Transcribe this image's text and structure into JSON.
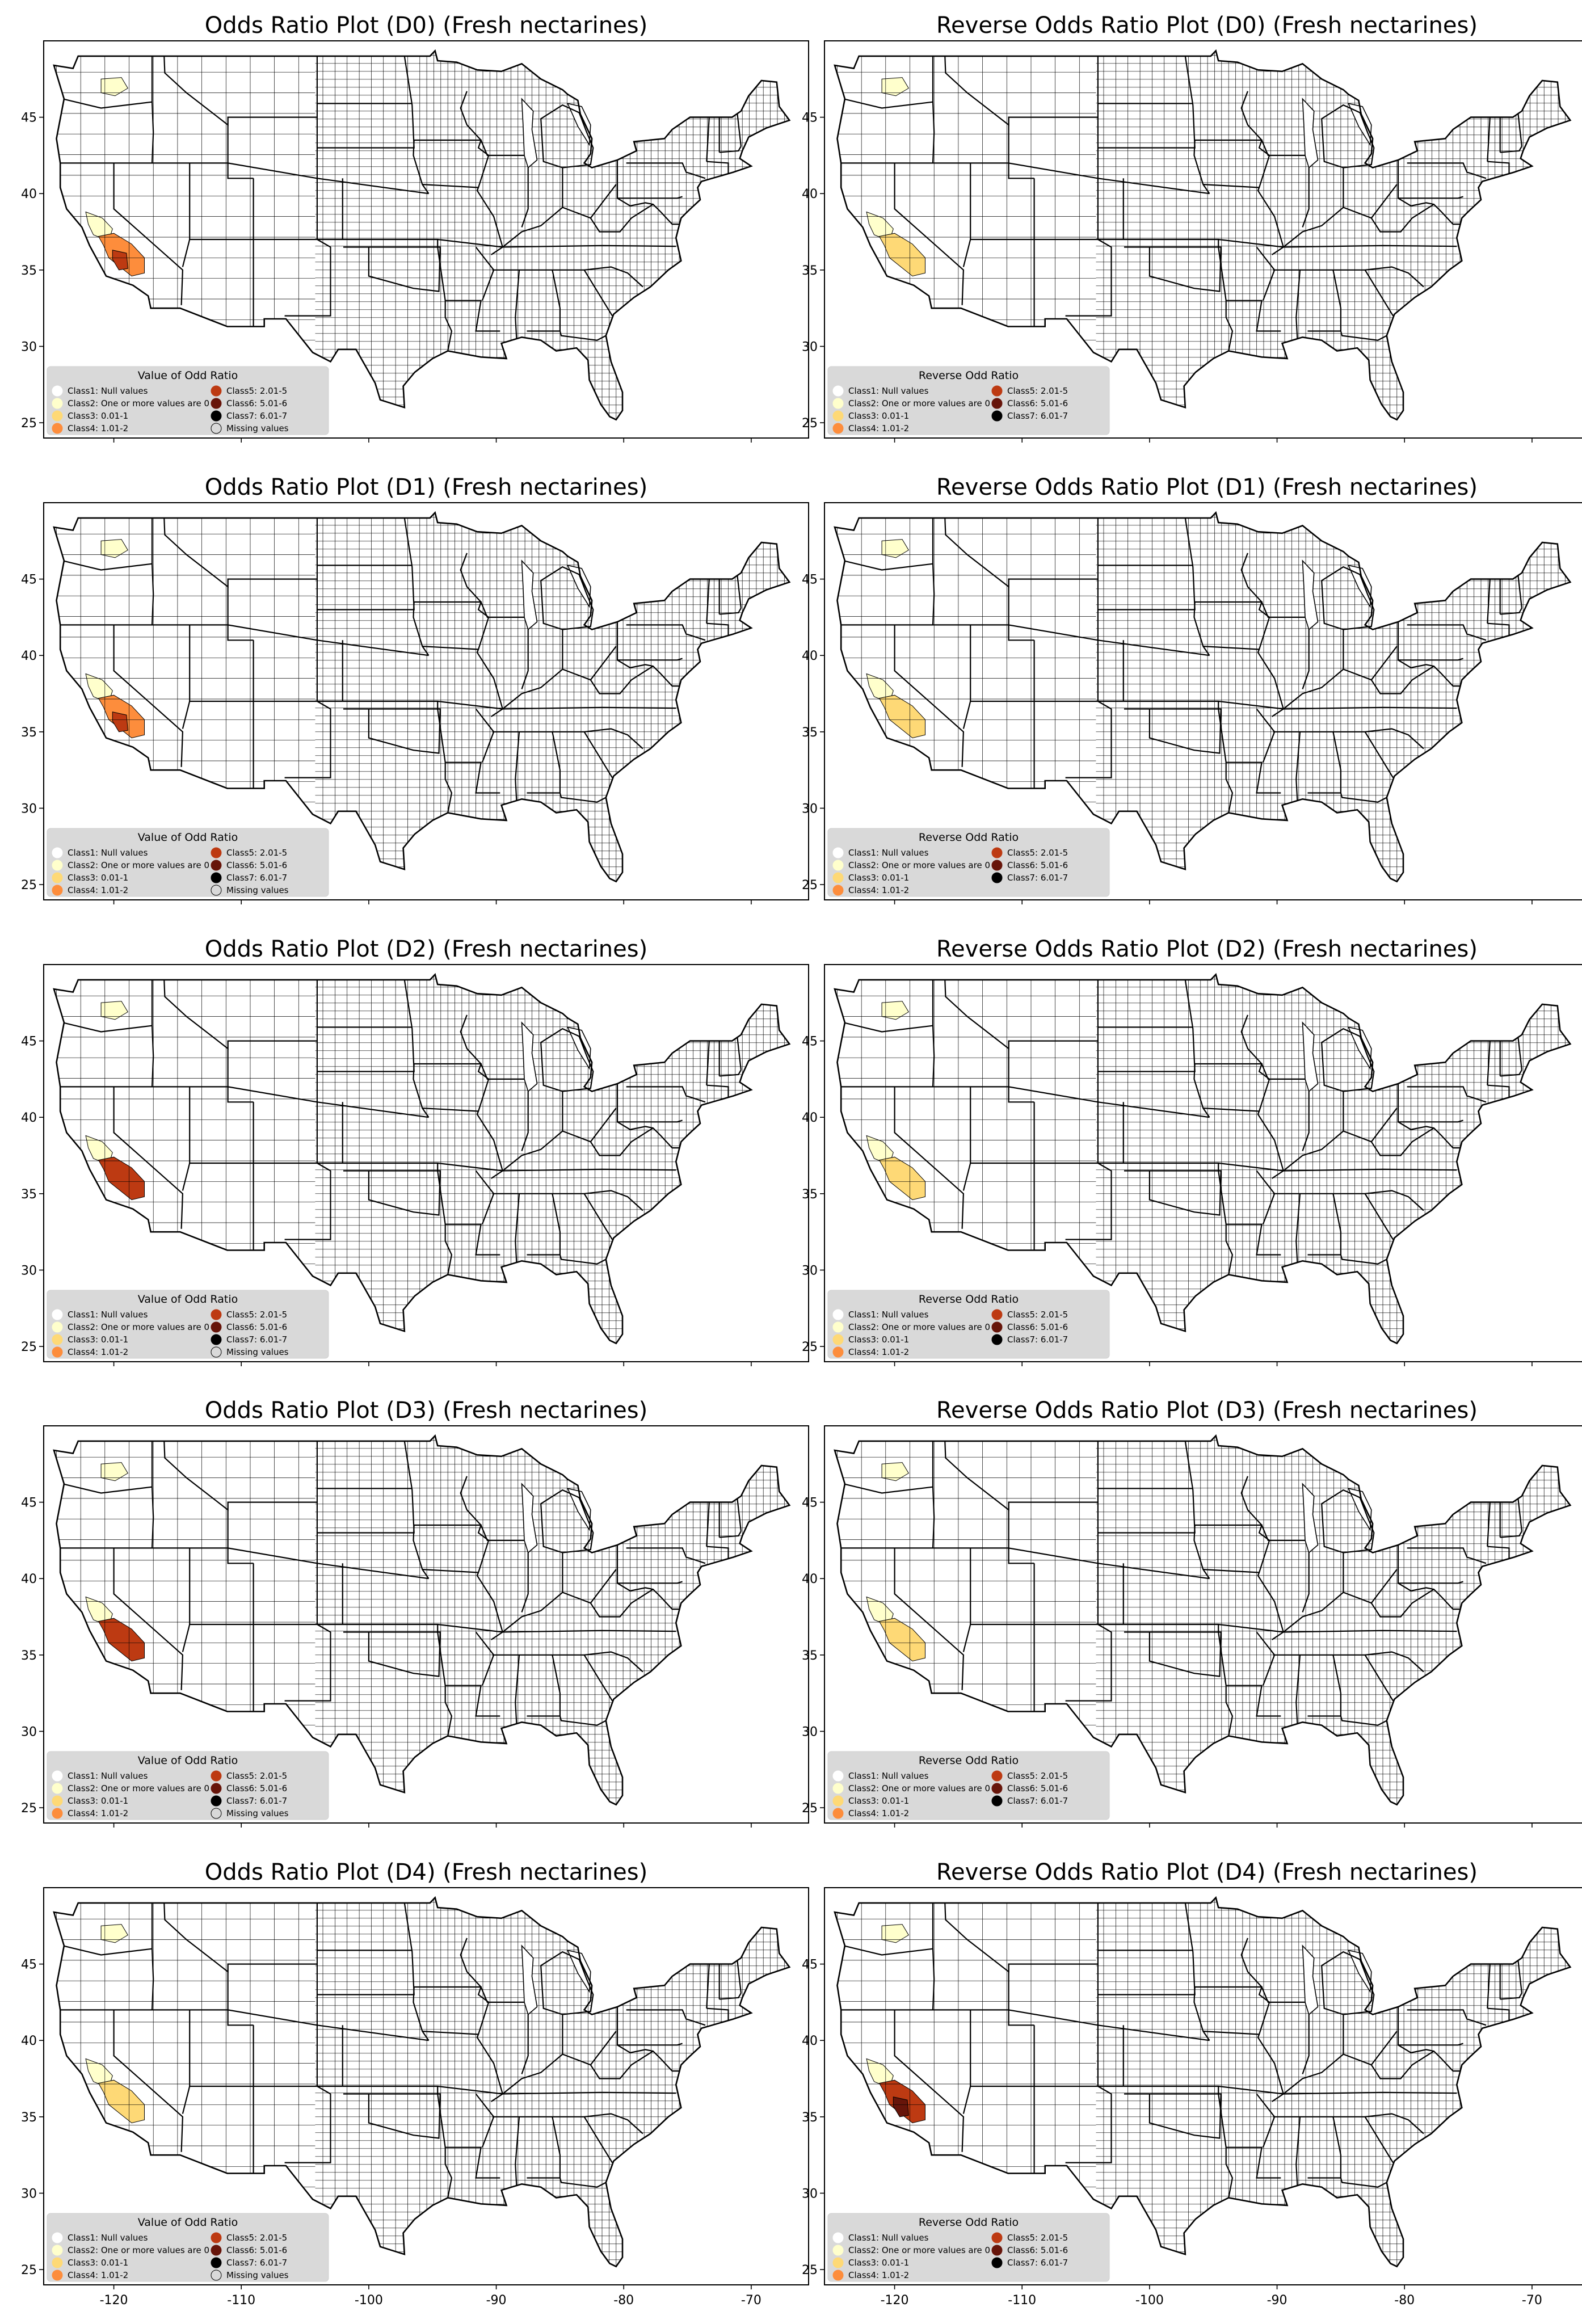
{
  "figure": {
    "panels": [
      {
        "id": "or-d0",
        "title": "Odds Ratio Plot (D0) (Fresh nectarines)",
        "legend_kind": "or"
      },
      {
        "id": "ror-d0",
        "title": "Reverse Odds Ratio Plot (D0) (Fresh nectarines)",
        "legend_kind": "ror"
      },
      {
        "id": "or-d1",
        "title": "Odds Ratio Plot (D1) (Fresh nectarines)",
        "legend_kind": "or"
      },
      {
        "id": "ror-d1",
        "title": "Reverse Odds Ratio Plot (D1) (Fresh nectarines)",
        "legend_kind": "ror"
      },
      {
        "id": "or-d2",
        "title": "Odds Ratio Plot (D2) (Fresh nectarines)",
        "legend_kind": "or"
      },
      {
        "id": "ror-d2",
        "title": "Reverse Odds Ratio Plot (D2) (Fresh nectarines)",
        "legend_kind": "ror"
      },
      {
        "id": "or-d3",
        "title": "Odds Ratio Plot (D3) (Fresh nectarines)",
        "legend_kind": "or"
      },
      {
        "id": "ror-d3",
        "title": "Reverse Odds Ratio Plot (D3) (Fresh nectarines)",
        "legend_kind": "ror"
      },
      {
        "id": "or-d4",
        "title": "Odds Ratio Plot (D4) (Fresh nectarines)",
        "legend_kind": "or"
      },
      {
        "id": "ror-d4",
        "title": "Reverse Odds Ratio Plot (D4) (Fresh nectarines)",
        "legend_kind": "ror"
      }
    ]
  },
  "axes": {
    "lon_ticks": [
      -120,
      -110,
      -100,
      -90,
      -80,
      -70
    ],
    "lat_ticks": [
      25,
      30,
      35,
      40,
      45
    ],
    "lon_range": [
      -125.5,
      -65.5
    ],
    "lat_range": [
      24.0,
      50.0
    ]
  },
  "legends": {
    "or": {
      "title": "Value of Odd Ratio",
      "items": [
        {
          "label": "Class1: Null values",
          "color": "#ffffff"
        },
        {
          "label": "Class2: One or more values are 0",
          "color": "#ffffcc"
        },
        {
          "label": "Class3: 0.01-1",
          "color": "#fed976"
        },
        {
          "label": "Class4: 1.01-2",
          "color": "#fd8d3c"
        },
        {
          "label": "Class5: 2.01-5",
          "color": "#bd3a12"
        },
        {
          "label": "Class6: 5.01-6",
          "color": "#67150a"
        },
        {
          "label": "Class7: 6.01-7",
          "color": "#000000"
        },
        {
          "label": "Missing values",
          "color": "#d9d9d9"
        }
      ]
    },
    "ror": {
      "title": "Reverse Odd Ratio",
      "items": [
        {
          "label": "Class1: Null values",
          "color": "#ffffff"
        },
        {
          "label": "Class2: One or more values are 0",
          "color": "#ffffcc"
        },
        {
          "label": "Class3: 0.01-1",
          "color": "#fed976"
        },
        {
          "label": "Class4: 1.01-2",
          "color": "#fd8d3c"
        },
        {
          "label": "Class5: 2.01-5",
          "color": "#bd3a12"
        },
        {
          "label": "Class6: 5.01-6",
          "color": "#67150a"
        },
        {
          "label": "Class7: 6.01-7",
          "color": "#000000"
        }
      ]
    }
  },
  "chart_data": {
    "type": "choropleth",
    "region": "Contiguous United States (county level)",
    "panels": [
      {
        "panel": "or-d0",
        "highlighted": [
          {
            "area": "Central Washington",
            "class": "Class2: One or more values are 0"
          },
          {
            "area": "Central California (north)",
            "class": "Class2: One or more values are 0"
          },
          {
            "area": "Central California (south)",
            "class": "Class4: 1.01-2"
          },
          {
            "area": "Southern San Joaquin Valley",
            "class": "Class5: 2.01-5"
          }
        ]
      },
      {
        "panel": "ror-d0",
        "highlighted": [
          {
            "area": "Central Washington",
            "class": "Class2: One or more values are 0"
          },
          {
            "area": "Central California (north)",
            "class": "Class2: One or more values are 0"
          },
          {
            "area": "Central California (south)",
            "class": "Class3: 0.01-1"
          }
        ]
      },
      {
        "panel": "or-d1",
        "highlighted": [
          {
            "area": "Central Washington",
            "class": "Class2: One or more values are 0"
          },
          {
            "area": "Central California (north)",
            "class": "Class2: One or more values are 0"
          },
          {
            "area": "Central California (south)",
            "class": "Class4: 1.01-2"
          },
          {
            "area": "Southern San Joaquin Valley",
            "class": "Class5: 2.01-5"
          }
        ]
      },
      {
        "panel": "ror-d1",
        "highlighted": [
          {
            "area": "Central Washington",
            "class": "Class2: One or more values are 0"
          },
          {
            "area": "Central California (north)",
            "class": "Class2: One or more values are 0"
          },
          {
            "area": "Central California (south)",
            "class": "Class3: 0.01-1"
          }
        ]
      },
      {
        "panel": "or-d2",
        "highlighted": [
          {
            "area": "Central Washington",
            "class": "Class2: One or more values are 0"
          },
          {
            "area": "Central California (north)",
            "class": "Class2: One or more values are 0"
          },
          {
            "area": "Central California (south)",
            "class": "Class5: 2.01-5"
          }
        ]
      },
      {
        "panel": "ror-d2",
        "highlighted": [
          {
            "area": "Central Washington",
            "class": "Class2: One or more values are 0"
          },
          {
            "area": "Central California (north)",
            "class": "Class2: One or more values are 0"
          },
          {
            "area": "Central California (south)",
            "class": "Class3: 0.01-1"
          }
        ]
      },
      {
        "panel": "or-d3",
        "highlighted": [
          {
            "area": "Central Washington",
            "class": "Class2: One or more values are 0"
          },
          {
            "area": "Central California (north)",
            "class": "Class2: One or more values are 0"
          },
          {
            "area": "Central California (south)",
            "class": "Class5: 2.01-5"
          }
        ]
      },
      {
        "panel": "ror-d3",
        "highlighted": [
          {
            "area": "Central Washington",
            "class": "Class2: One or more values are 0"
          },
          {
            "area": "Central California (north)",
            "class": "Class2: One or more values are 0"
          },
          {
            "area": "Central California (south)",
            "class": "Class3: 0.01-1"
          }
        ]
      },
      {
        "panel": "or-d4",
        "highlighted": [
          {
            "area": "Central Washington",
            "class": "Class2: One or more values are 0"
          },
          {
            "area": "Central California (north)",
            "class": "Class2: One or more values are 0"
          },
          {
            "area": "Central California (south)",
            "class": "Class3: 0.01-1"
          }
        ]
      },
      {
        "panel": "ror-d4",
        "highlighted": [
          {
            "area": "Central Washington",
            "class": "Class2: One or more values are 0"
          },
          {
            "area": "Central California (north)",
            "class": "Class2: One or more values are 0"
          },
          {
            "area": "Central California (south)",
            "class": "Class5: 2.01-5"
          },
          {
            "area": "Southern San Joaquin Valley",
            "class": "Class6: 5.01-6"
          }
        ]
      }
    ]
  }
}
